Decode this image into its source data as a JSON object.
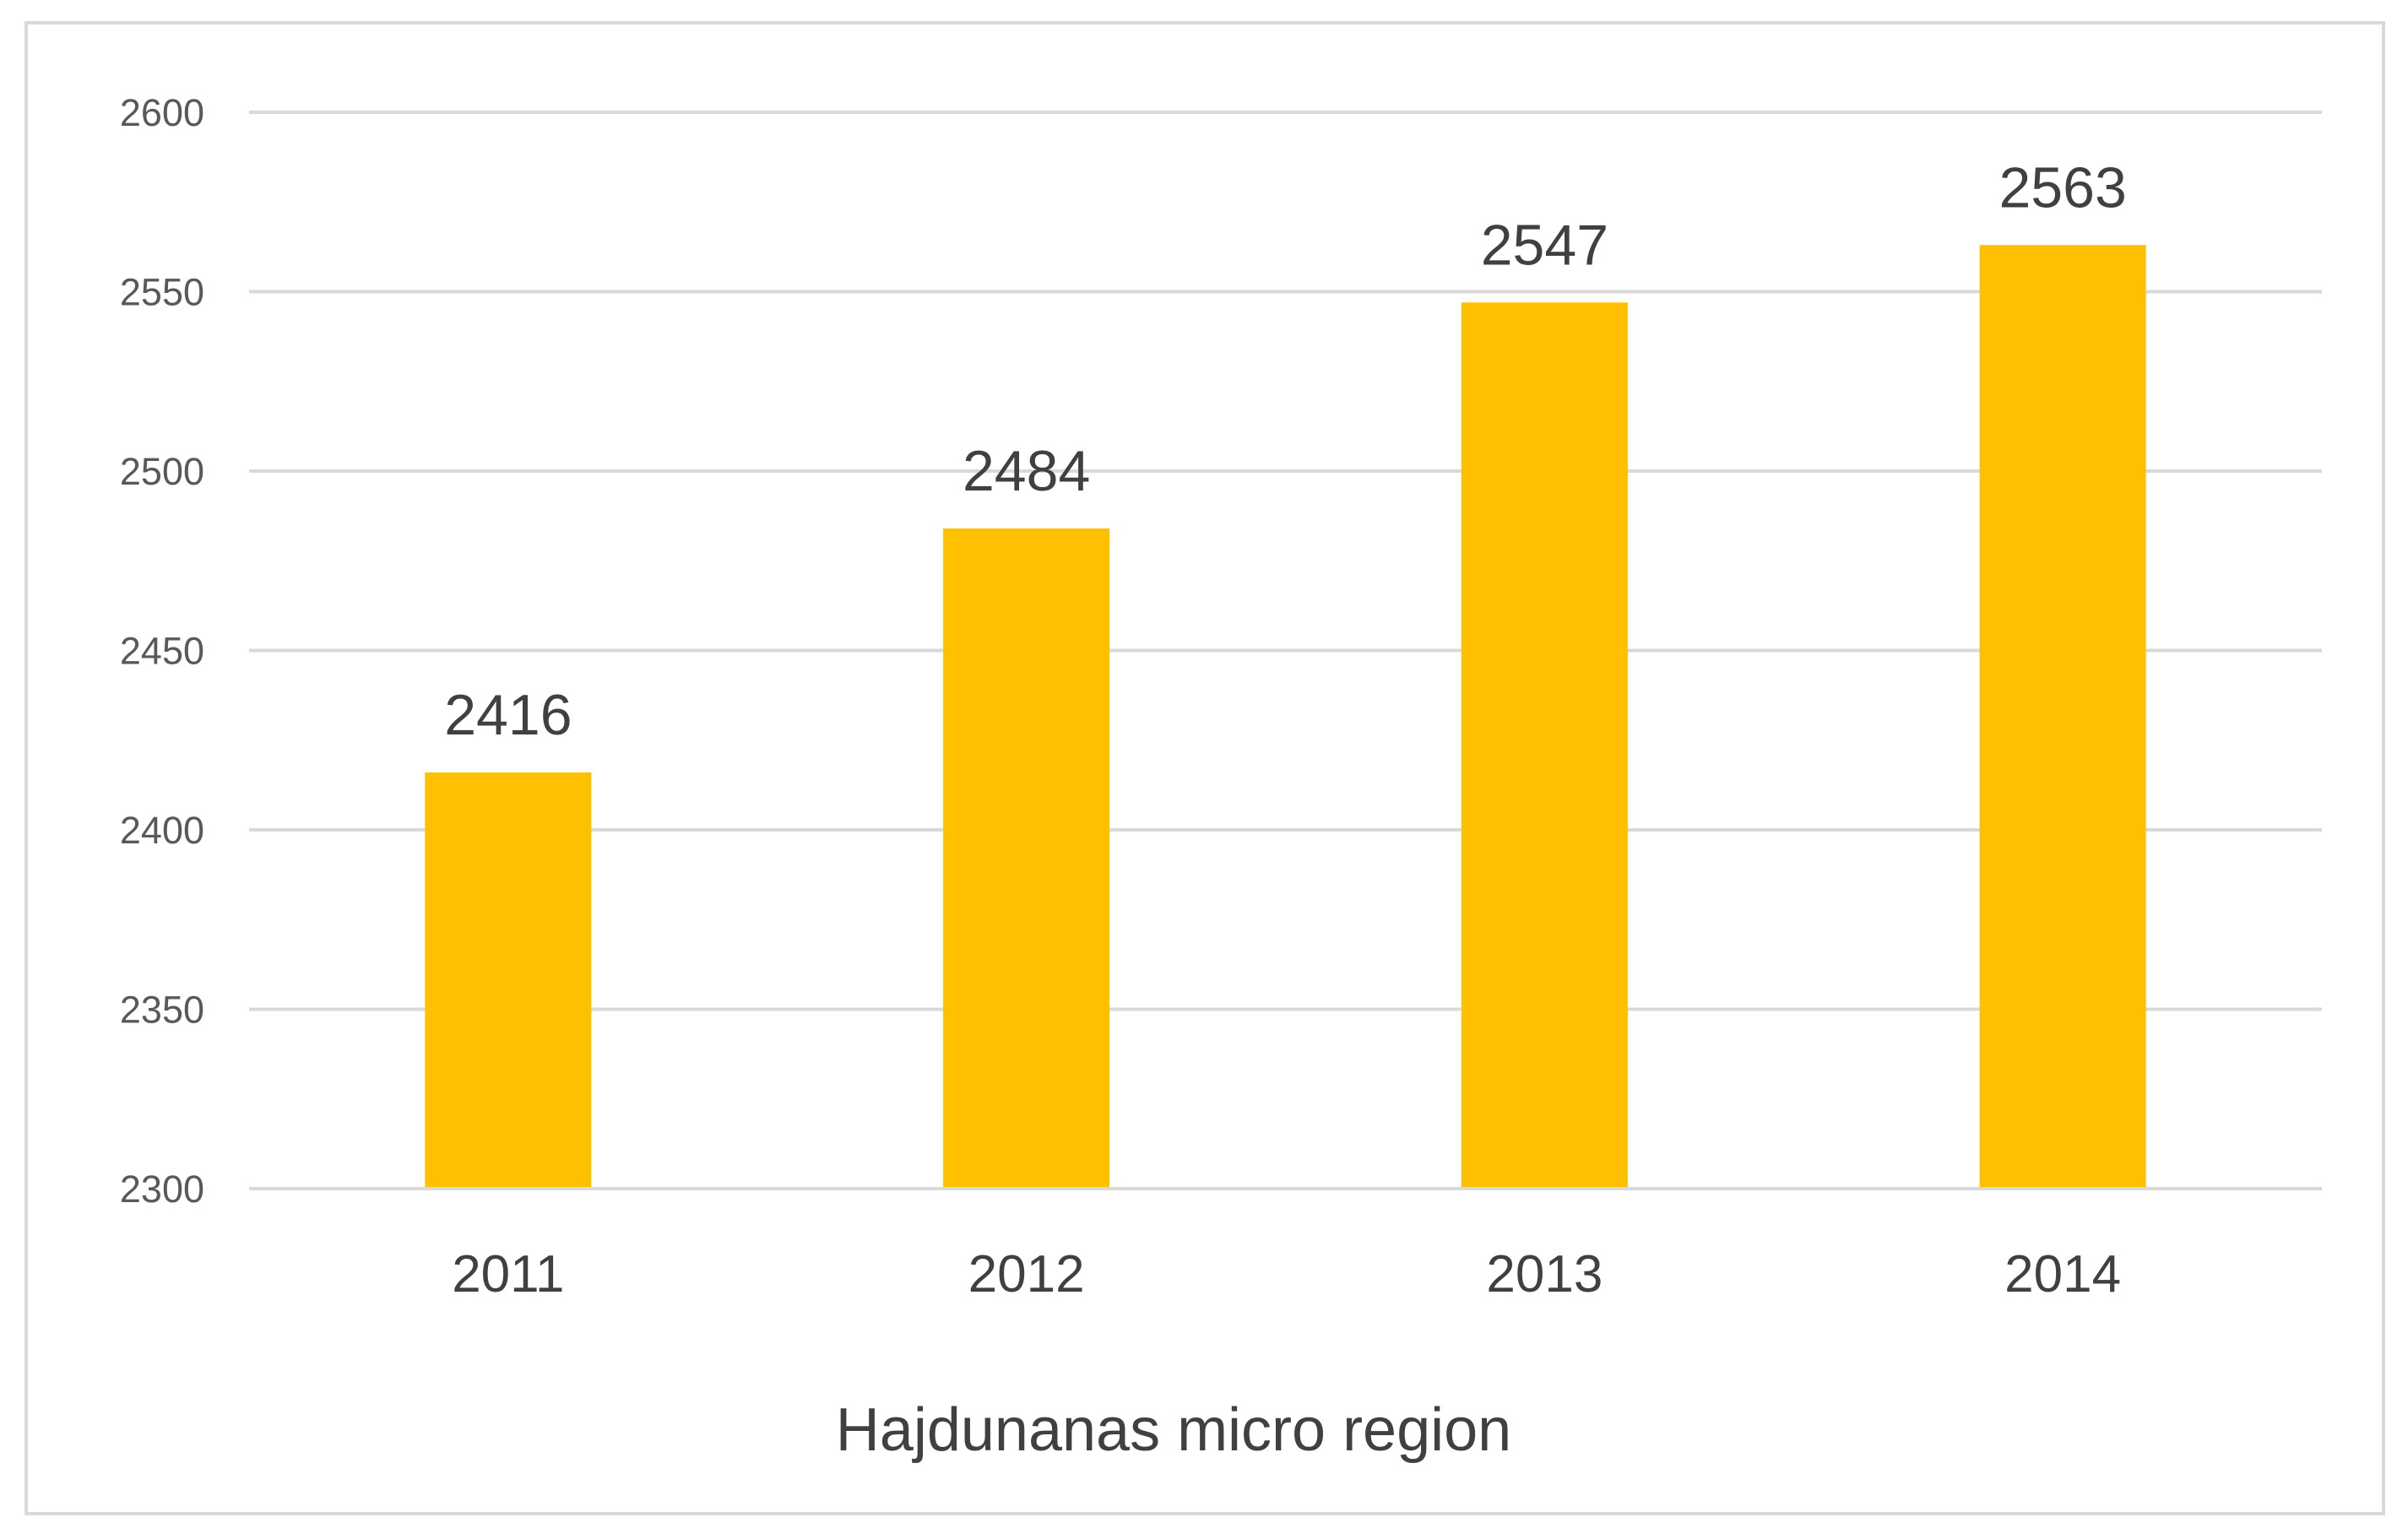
{
  "chart_data": {
    "type": "bar",
    "categories": [
      "2011",
      "2012",
      "2013",
      "2014"
    ],
    "values": [
      2416,
      2484,
      2547,
      2563
    ],
    "data_labels": [
      "2416",
      "2484",
      "2547",
      "2563"
    ],
    "title": "",
    "xlabel": "Hajdunanas micro region",
    "ylabel": "",
    "ylim": [
      2300,
      2600
    ],
    "yticks": [
      2300,
      2350,
      2400,
      2450,
      2500,
      2550,
      2600
    ],
    "grid": true,
    "legend": "none",
    "colors": {
      "bar": "#FFC000",
      "grid": "#D9D9D9",
      "frame": "#D9D9D9"
    }
  }
}
